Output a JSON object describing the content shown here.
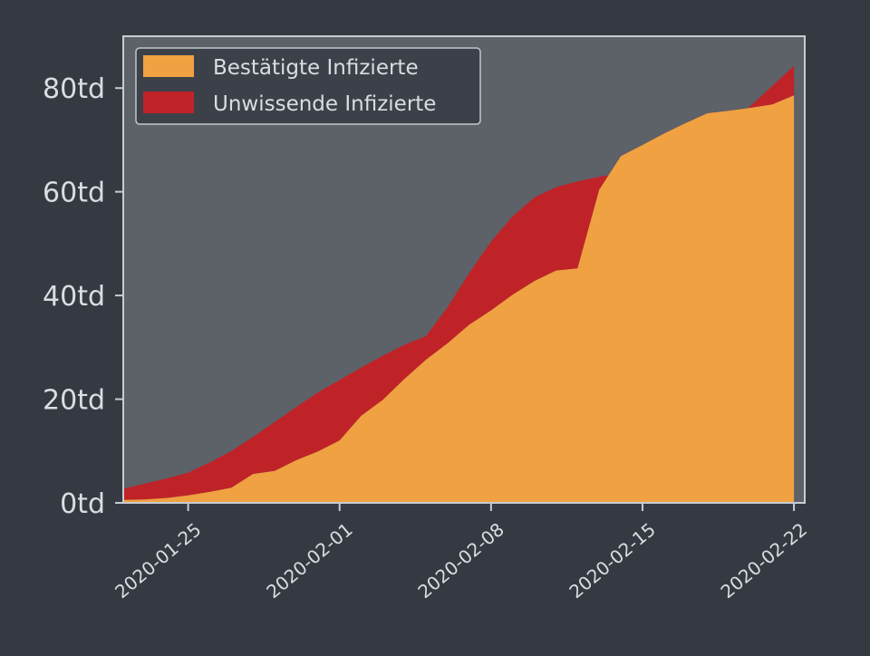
{
  "colors": {
    "figure_background": "#353a42",
    "axes_background": "#5d6168",
    "axes_edge": "#c8ccd2",
    "tick_text": "#dadde2",
    "confirmed": "#f0a141",
    "unaware": "#bf2328",
    "legend_background": "#3b4048",
    "legend_edge": "#c8ccd2",
    "legend_text": "#dadde2"
  },
  "chart_data": {
    "type": "area",
    "stacked": true,
    "title": "",
    "xlabel": "",
    "ylabel": "",
    "x_is_date": true,
    "xlim": [
      "2020-01-22",
      "2020-02-22T12:00"
    ],
    "ylim": [
      0,
      90000
    ],
    "y_ticks": [
      0,
      20000,
      40000,
      60000,
      80000
    ],
    "y_tick_labels": [
      "0td",
      "20td",
      "40td",
      "60td",
      "80td"
    ],
    "x_ticks": [
      "2020-01-25",
      "2020-02-01",
      "2020-02-08",
      "2020-02-15",
      "2020-02-22"
    ],
    "x_tick_labels": [
      "2020-01-25",
      "2020-02-01",
      "2020-02-08",
      "2020-02-15",
      "2020-02-22"
    ],
    "grid": false,
    "legend_position": "top-left",
    "x": [
      "2020-01-22",
      "2020-01-23",
      "2020-01-24",
      "2020-01-25",
      "2020-01-26",
      "2020-01-27",
      "2020-01-28",
      "2020-01-29",
      "2020-01-30",
      "2020-01-31",
      "2020-02-01",
      "2020-02-02",
      "2020-02-03",
      "2020-02-04",
      "2020-02-05",
      "2020-02-06",
      "2020-02-07",
      "2020-02-08",
      "2020-02-09",
      "2020-02-10",
      "2020-02-11",
      "2020-02-12",
      "2020-02-13",
      "2020-02-14",
      "2020-02-15",
      "2020-02-16",
      "2020-02-17",
      "2020-02-18",
      "2020-02-19",
      "2020-02-20",
      "2020-02-21",
      "2020-02-22"
    ],
    "series": [
      {
        "name": "Bestätigte Infizierte",
        "color": "#f0a141",
        "values": [
          555,
          653,
          941,
          1438,
          2118,
          2927,
          5578,
          6166,
          8234,
          9927,
          12038,
          16787,
          19881,
          23892,
          27636,
          30818,
          34392,
          37121,
          40151,
          42763,
          44803,
          45222,
          60370,
          66887,
          69032,
          71226,
          73260,
          75138,
          75641,
          76199,
          76843,
          78599
        ]
      },
      {
        "name": "Unwissende Infizierte",
        "color": "#bf2328",
        "total_values": [
          2700,
          3700,
          4700,
          5800,
          7800,
          10000,
          12700,
          15600,
          18500,
          21300,
          23700,
          26100,
          28400,
          30500,
          32200,
          37800,
          44400,
          50400,
          55300,
          58900,
          60900,
          62000,
          62900,
          63600,
          64300,
          65100,
          67100,
          69600,
          72900,
          76600,
          80400,
          84300
        ]
      }
    ]
  }
}
